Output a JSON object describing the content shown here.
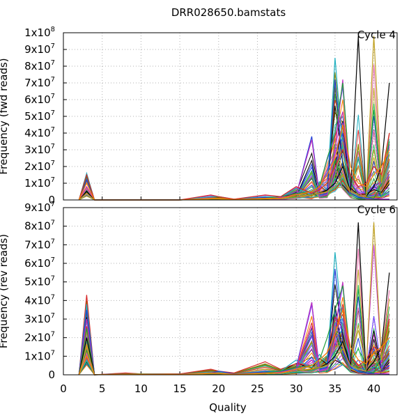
{
  "title": "DRR028650.bamstats",
  "xlabel": "Quality",
  "x_ticks": [
    "0",
    "5",
    "10",
    "15",
    "20",
    "25",
    "30",
    "35",
    "40"
  ],
  "palette": [
    "#d62728",
    "#1f9e3a",
    "#1f3fd6",
    "#c030c0",
    "#20b0c0",
    "#c0a020",
    "#000000",
    "#ff8000",
    "#808000",
    "#e060a0",
    "#30c060",
    "#8040ff"
  ],
  "chart_data": [
    {
      "type": "line",
      "panel": "top",
      "ylabel": "Frequency (fwd reads)",
      "annotation": "Cycle 4",
      "xlim": [
        0,
        43
      ],
      "ylim": [
        0,
        100000000
      ],
      "y_ticks": [
        {
          "value": 0,
          "base": "0",
          "exp": ""
        },
        {
          "value": 10000000,
          "base": "1x10",
          "exp": "7"
        },
        {
          "value": 20000000,
          "base": "2x10",
          "exp": "7"
        },
        {
          "value": 30000000,
          "base": "3x10",
          "exp": "7"
        },
        {
          "value": 40000000,
          "base": "4x10",
          "exp": "7"
        },
        {
          "value": 50000000,
          "base": "5x10",
          "exp": "7"
        },
        {
          "value": 60000000,
          "base": "6x10",
          "exp": "7"
        },
        {
          "value": 70000000,
          "base": "7x10",
          "exp": "7"
        },
        {
          "value": 80000000,
          "base": "8x10",
          "exp": "7"
        },
        {
          "value": 90000000,
          "base": "9x10",
          "exp": "7"
        },
        {
          "value": 100000000,
          "base": "1x10",
          "exp": "8"
        }
      ],
      "x": [
        2,
        3,
        4,
        8,
        10,
        15,
        19,
        20,
        22,
        26,
        28,
        30,
        32,
        33,
        34,
        35,
        36,
        37,
        38,
        39,
        40,
        41,
        42
      ],
      "series": [
        {
          "color": "#20b0c0",
          "values": [
            0,
            16000000,
            0,
            0,
            0,
            0,
            2000000,
            2000000,
            500000,
            2000000,
            1500000,
            7000000,
            3000000,
            11000000,
            6000000,
            85000000,
            30000000,
            5000000,
            2000000,
            1000000,
            1000000,
            500000,
            500000
          ]
        },
        {
          "color": "#1f3fd6",
          "values": [
            0,
            12000000,
            0,
            0,
            0,
            0,
            1000000,
            1000000,
            300000,
            1500000,
            1000000,
            3000000,
            38000000,
            3000000,
            4000000,
            72000000,
            20000000,
            4000000,
            1500000,
            1000000,
            800000,
            500000,
            500000
          ]
        },
        {
          "color": "#c030c0",
          "values": [
            0,
            8000000,
            0,
            0,
            0,
            0,
            1000000,
            1000000,
            200000,
            1000000,
            1500000,
            3000000,
            36000000,
            2000000,
            3000000,
            30000000,
            72000000,
            5000000,
            3000000,
            2000000,
            1000000,
            500000,
            500000
          ]
        },
        {
          "color": "#1f9e3a",
          "values": [
            0,
            14000000,
            0,
            0,
            0,
            0,
            500000,
            500000,
            300000,
            1000000,
            2000000,
            4000000,
            5000000,
            8000000,
            25000000,
            40000000,
            70000000,
            10000000,
            3000000,
            2000000,
            1000000,
            10000000,
            35000000
          ]
        },
        {
          "color": "#000000",
          "values": [
            0,
            5000000,
            0,
            0,
            0,
            0,
            500000,
            500000,
            200000,
            500000,
            1000000,
            2000000,
            3000000,
            4000000,
            6000000,
            10000000,
            20000000,
            5000000,
            98000000,
            2000000,
            8000000,
            20000000,
            70000000
          ]
        },
        {
          "color": "#c0a020",
          "values": [
            0,
            4000000,
            0,
            0,
            0,
            0,
            500000,
            500000,
            200000,
            500000,
            1000000,
            2000000,
            3000000,
            4000000,
            5000000,
            8000000,
            15000000,
            5000000,
            3000000,
            2000000,
            98000000,
            10000000,
            40000000
          ]
        },
        {
          "color": "#d62728",
          "values": [
            0,
            15000000,
            0,
            0,
            0,
            0,
            3000000,
            2000000,
            500000,
            3000000,
            2000000,
            8000000,
            4000000,
            6000000,
            10000000,
            20000000,
            30000000,
            15000000,
            8000000,
            10000000,
            20000000,
            15000000,
            40000000
          ]
        },
        {
          "color": "#ff8000",
          "values": [
            0,
            10000000,
            0,
            0,
            0,
            0,
            1000000,
            1000000,
            300000,
            1000000,
            1000000,
            3000000,
            5000000,
            8000000,
            15000000,
            25000000,
            45000000,
            20000000,
            10000000,
            8000000,
            15000000,
            20000000,
            30000000
          ]
        }
      ]
    },
    {
      "type": "line",
      "panel": "bottom",
      "ylabel": "Frequency (rev reads)",
      "annotation": "Cycle 6",
      "xlim": [
        0,
        43
      ],
      "ylim": [
        0,
        90000000
      ],
      "y_ticks": [
        {
          "value": 0,
          "base": "0",
          "exp": ""
        },
        {
          "value": 10000000,
          "base": "1x10",
          "exp": "7"
        },
        {
          "value": 20000000,
          "base": "2x10",
          "exp": "7"
        },
        {
          "value": 30000000,
          "base": "3x10",
          "exp": "7"
        },
        {
          "value": 40000000,
          "base": "4x10",
          "exp": "7"
        },
        {
          "value": 50000000,
          "base": "5x10",
          "exp": "7"
        },
        {
          "value": 60000000,
          "base": "6x10",
          "exp": "7"
        },
        {
          "value": 70000000,
          "base": "7x10",
          "exp": "7"
        },
        {
          "value": 80000000,
          "base": "8x10",
          "exp": "7"
        },
        {
          "value": 90000000,
          "base": "9x10",
          "exp": "7"
        }
      ],
      "x": [
        2,
        3,
        4,
        8,
        10,
        15,
        19,
        20,
        22,
        26,
        28,
        30,
        32,
        33,
        34,
        35,
        36,
        37,
        38,
        39,
        40,
        41,
        42
      ],
      "series": [
        {
          "color": "#d62728",
          "values": [
            0,
            43000000,
            0,
            1000000,
            500000,
            500000,
            3000000,
            2000000,
            1000000,
            7000000,
            3000000,
            6000000,
            5000000,
            8000000,
            12000000,
            31000000,
            25000000,
            10000000,
            5000000,
            8000000,
            15000000,
            12000000,
            30000000
          ]
        },
        {
          "color": "#20b0c0",
          "values": [
            0,
            38000000,
            0,
            500000,
            500000,
            300000,
            1500000,
            1500000,
            500000,
            2000000,
            2000000,
            8000000,
            4000000,
            11000000,
            6000000,
            66000000,
            25000000,
            5000000,
            2000000,
            1000000,
            1000000,
            500000,
            500000
          ]
        },
        {
          "color": "#1f3fd6",
          "values": [
            0,
            35000000,
            0,
            500000,
            500000,
            300000,
            1000000,
            2000000,
            500000,
            1500000,
            1500000,
            4000000,
            39000000,
            3000000,
            4000000,
            57000000,
            18000000,
            4000000,
            1500000,
            1000000,
            800000,
            500000,
            500000
          ]
        },
        {
          "color": "#c030c0",
          "values": [
            0,
            30000000,
            0,
            500000,
            500000,
            200000,
            1000000,
            1000000,
            300000,
            1000000,
            1500000,
            3000000,
            39000000,
            2000000,
            3000000,
            25000000,
            50000000,
            5000000,
            3000000,
            2000000,
            1000000,
            500000,
            500000
          ]
        },
        {
          "color": "#1f9e3a",
          "values": [
            0,
            25000000,
            0,
            500000,
            500000,
            200000,
            500000,
            500000,
            300000,
            1000000,
            2000000,
            4000000,
            5000000,
            8000000,
            20000000,
            35000000,
            48000000,
            10000000,
            3000000,
            2000000,
            1000000,
            10000000,
            27000000
          ]
        },
        {
          "color": "#000000",
          "values": [
            0,
            20000000,
            0,
            300000,
            300000,
            200000,
            500000,
            500000,
            200000,
            500000,
            1000000,
            2000000,
            3000000,
            4000000,
            6000000,
            10000000,
            18000000,
            5000000,
            82000000,
            2000000,
            7000000,
            15000000,
            55000000
          ]
        },
        {
          "color": "#c0a020",
          "values": [
            0,
            15000000,
            0,
            300000,
            300000,
            200000,
            500000,
            500000,
            200000,
            500000,
            1000000,
            2000000,
            3000000,
            4000000,
            5000000,
            8000000,
            14000000,
            5000000,
            3000000,
            2000000,
            82000000,
            8000000,
            28000000
          ]
        },
        {
          "color": "#ff8000",
          "values": [
            0,
            10000000,
            0,
            300000,
            300000,
            200000,
            1000000,
            1000000,
            300000,
            1000000,
            1000000,
            3000000,
            5000000,
            8000000,
            12000000,
            22000000,
            35000000,
            15000000,
            8000000,
            6000000,
            12000000,
            15000000,
            20000000
          ]
        }
      ]
    }
  ]
}
